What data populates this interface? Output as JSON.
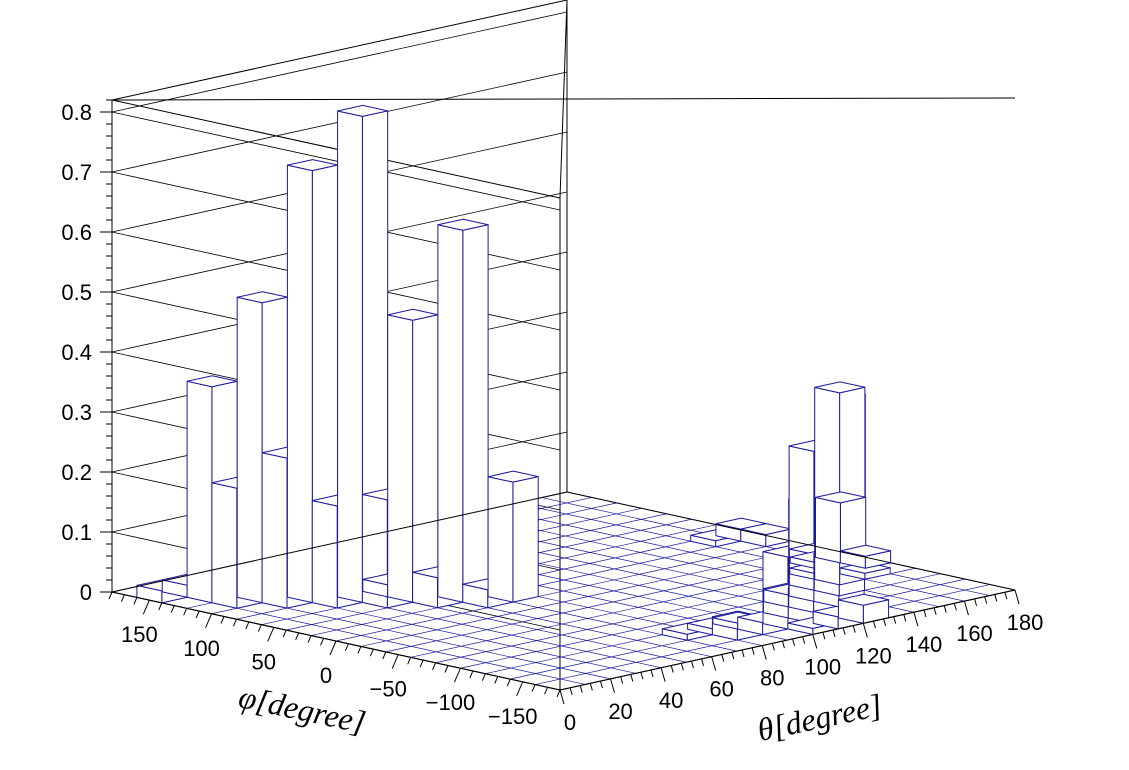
{
  "chart_data": {
    "type": "lego-histogram-2d",
    "xlabel": "θ[degree]",
    "ylabel": "φ[degree]",
    "zlabel": "",
    "x_range": [
      0,
      180
    ],
    "y_range": [
      -180,
      180
    ],
    "z_range": [
      0,
      0.82
    ],
    "x_tick_labels": [
      "0",
      "20",
      "40",
      "60",
      "80",
      "100",
      "120",
      "140",
      "160",
      "180"
    ],
    "y_tick_labels": [
      "−150",
      "−100",
      "−50",
      "0",
      "50",
      "100",
      "150"
    ],
    "z_tick_labels": [
      "0",
      "0.1",
      "0.2",
      "0.3",
      "0.4",
      "0.5",
      "0.6",
      "0.7",
      "0.8"
    ],
    "x_bin_width": 10,
    "y_bin_width": 20,
    "bins": [
      {
        "theta": [
          0,
          10
        ],
        "phi": [
          140,
          160
        ],
        "z": 0.02
      },
      {
        "theta": [
          10,
          20
        ],
        "phi": [
          140,
          160
        ],
        "z": 0.02
      },
      {
        "theta": [
          0,
          10
        ],
        "phi": [
          120,
          140
        ],
        "z": 0.0
      },
      {
        "theta": [
          10,
          20
        ],
        "phi": [
          120,
          140
        ],
        "z": 0.36
      },
      {
        "theta": [
          20,
          30
        ],
        "phi": [
          120,
          140
        ],
        "z": 0.01
      },
      {
        "theta": [
          10,
          20
        ],
        "phi": [
          100,
          120
        ],
        "z": 0.2
      },
      {
        "theta": [
          20,
          30
        ],
        "phi": [
          100,
          120
        ],
        "z": 0.5
      },
      {
        "theta": [
          30,
          40
        ],
        "phi": [
          100,
          120
        ],
        "z": 0.01
      },
      {
        "theta": [
          20,
          30
        ],
        "phi": [
          80,
          100
        ],
        "z": 0.25
      },
      {
        "theta": [
          30,
          40
        ],
        "phi": [
          80,
          100
        ],
        "z": 0.72
      },
      {
        "theta": [
          40,
          50
        ],
        "phi": [
          80,
          100
        ],
        "z": 0.01
      },
      {
        "theta": [
          30,
          40
        ],
        "phi": [
          60,
          80
        ],
        "z": 0.17
      },
      {
        "theta": [
          40,
          50
        ],
        "phi": [
          60,
          80
        ],
        "z": 0.81
      },
      {
        "theta": [
          50,
          60
        ],
        "phi": [
          60,
          80
        ],
        "z": 0.02
      },
      {
        "theta": [
          40,
          50
        ],
        "phi": [
          40,
          60
        ],
        "z": 0.18
      },
      {
        "theta": [
          50,
          60
        ],
        "phi": [
          40,
          60
        ],
        "z": 0.47
      },
      {
        "theta": [
          60,
          70
        ],
        "phi": [
          40,
          60
        ],
        "z": 0.02
      },
      {
        "theta": [
          50,
          60
        ],
        "phi": [
          20,
          40
        ],
        "z": 0.05
      },
      {
        "theta": [
          60,
          70
        ],
        "phi": [
          20,
          40
        ],
        "z": 0.62
      },
      {
        "theta": [
          70,
          80
        ],
        "phi": [
          20,
          40
        ],
        "z": 0.01
      },
      {
        "theta": [
          60,
          70
        ],
        "phi": [
          0,
          20
        ],
        "z": 0.03
      },
      {
        "theta": [
          70,
          80
        ],
        "phi": [
          0,
          20
        ],
        "z": 0.2
      },
      {
        "theta": [
          70,
          80
        ],
        "phi": [
          -140,
          -120
        ],
        "z": 0.01
      },
      {
        "theta": [
          80,
          90
        ],
        "phi": [
          -140,
          -120
        ],
        "z": 0.01
      },
      {
        "theta": [
          90,
          100
        ],
        "phi": [
          -140,
          -120
        ],
        "z": 0.01
      },
      {
        "theta": [
          80,
          90
        ],
        "phi": [
          -160,
          -140
        ],
        "z": 0.03
      },
      {
        "theta": [
          90,
          100
        ],
        "phi": [
          -160,
          -140
        ],
        "z": 0.02
      },
      {
        "theta": [
          100,
          110
        ],
        "phi": [
          -160,
          -140
        ],
        "z": 0.12
      },
      {
        "theta": [
          110,
          120
        ],
        "phi": [
          -160,
          -140
        ],
        "z": 0.05
      },
      {
        "theta": [
          100,
          110
        ],
        "phi": [
          -180,
          -160
        ],
        "z": 0.01
      },
      {
        "theta": [
          110,
          120
        ],
        "phi": [
          -180,
          -160
        ],
        "z": 0.02
      },
      {
        "theta": [
          120,
          130
        ],
        "phi": [
          -180,
          -160
        ],
        "z": 0.03
      },
      {
        "theta": [
          110,
          120
        ],
        "phi": [
          -140,
          -120
        ],
        "z": 0.04
      },
      {
        "theta": [
          120,
          130
        ],
        "phi": [
          -140,
          -120
        ],
        "z": 0.18
      },
      {
        "theta": [
          130,
          140
        ],
        "phi": [
          -140,
          -120
        ],
        "z": 0.08
      },
      {
        "theta": [
          120,
          130
        ],
        "phi": [
          -120,
          -100
        ],
        "z": 0.02
      },
      {
        "theta": [
          130,
          140
        ],
        "phi": [
          -120,
          -100
        ],
        "z": 0.25
      },
      {
        "theta": [
          140,
          150
        ],
        "phi": [
          -120,
          -100
        ],
        "z": 0.03
      },
      {
        "theta": [
          140,
          150
        ],
        "phi": [
          -100,
          -80
        ],
        "z": 0.06
      },
      {
        "theta": [
          150,
          160
        ],
        "phi": [
          -100,
          -80
        ],
        "z": 0.32
      },
      {
        "theta": [
          160,
          170
        ],
        "phi": [
          -100,
          -80
        ],
        "z": 0.01
      },
      {
        "theta": [
          150,
          160
        ],
        "phi": [
          -80,
          -60
        ],
        "z": 0.01
      },
      {
        "theta": [
          160,
          170
        ],
        "phi": [
          -80,
          -60
        ],
        "z": 0.29
      },
      {
        "theta": [
          170,
          180
        ],
        "phi": [
          -80,
          -60
        ],
        "z": 0.02
      },
      {
        "theta": [
          160,
          170
        ],
        "phi": [
          -60,
          -40
        ],
        "z": 0.01
      },
      {
        "theta": [
          170,
          180
        ],
        "phi": [
          -60,
          -40
        ],
        "z": 0.1
      },
      {
        "theta": [
          170,
          180
        ],
        "phi": [
          0,
          20
        ],
        "z": 0.02
      },
      {
        "theta": [
          170,
          180
        ],
        "phi": [
          20,
          40
        ],
        "z": 0.02
      },
      {
        "theta": [
          160,
          170
        ],
        "phi": [
          20,
          40
        ],
        "z": 0.01
      }
    ],
    "grid": true,
    "colors": {
      "box_line": "#1a1a9e",
      "box_fill": "#ffffff",
      "frame": "#000000"
    }
  }
}
